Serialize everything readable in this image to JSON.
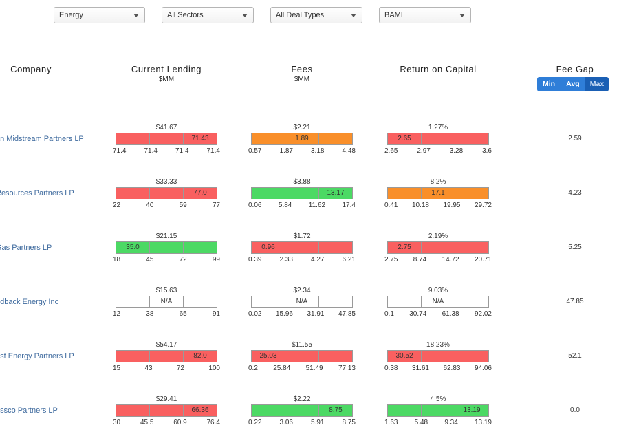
{
  "filters": [
    {
      "name": "filter-sector-group",
      "value": "Energy"
    },
    {
      "name": "filter-sectors",
      "value": "All Sectors"
    },
    {
      "name": "filter-deal-types",
      "value": "All Deal Types"
    },
    {
      "name": "filter-bank",
      "value": "BAML"
    }
  ],
  "headers": {
    "company": "Company",
    "lending": "Current Lending",
    "lending_unit": "$MM",
    "fees": "Fees",
    "fees_unit": "$MM",
    "roc": "Return on Capital",
    "fee_gap": "Fee Gap"
  },
  "toggle": {
    "min": "Min",
    "avg": "Avg",
    "max": "Max",
    "active": "max"
  },
  "colors": {
    "red": "#f96060",
    "orange": "#f98f2a",
    "green": "#4cd964",
    "na": "#ffffff",
    "link": "#3e6a9e",
    "toggle": "#2f7ed8"
  },
  "rows": [
    {
      "company": "an Midstream Partners LP",
      "lending": {
        "top": "$41.67",
        "value": "71.43",
        "seg": 2,
        "color": "red",
        "ticks": [
          "71.4",
          "71.4",
          "71.4",
          "71.4"
        ]
      },
      "fees": {
        "top": "$2.21",
        "value": "1.89",
        "seg": 1,
        "color": "orange",
        "ticks": [
          "0.57",
          "1.87",
          "3.18",
          "4.48"
        ]
      },
      "roc": {
        "top": "1.27%",
        "value": "2.65",
        "seg": 0,
        "color": "red",
        "ticks": [
          "2.65",
          "2.97",
          "3.28",
          "3.6"
        ]
      },
      "fee_gap": "2.59"
    },
    {
      "company": "Resources Partners LP",
      "lending": {
        "top": "$33.33",
        "value": "77.0",
        "seg": 2,
        "color": "red",
        "ticks": [
          "22",
          "40",
          "59",
          "77"
        ]
      },
      "fees": {
        "top": "$3.88",
        "value": "13.17",
        "seg": 2,
        "color": "green",
        "ticks": [
          "0.06",
          "5.84",
          "11.62",
          "17.4"
        ]
      },
      "roc": {
        "top": "8.2%",
        "value": "17.1",
        "seg": 1,
        "color": "orange",
        "ticks": [
          "0.41",
          "10.18",
          "19.95",
          "29.72"
        ]
      },
      "fee_gap": "4.23"
    },
    {
      "company": "Gas Partners LP",
      "lending": {
        "top": "$21.15",
        "value": "35.0",
        "seg": 0,
        "color": "green",
        "ticks": [
          "18",
          "45",
          "72",
          "99"
        ]
      },
      "fees": {
        "top": "$1.72",
        "value": "0.96",
        "seg": 0,
        "color": "red",
        "ticks": [
          "0.39",
          "2.33",
          "4.27",
          "6.21"
        ]
      },
      "roc": {
        "top": "2.19%",
        "value": "2.75",
        "seg": 0,
        "color": "red",
        "ticks": [
          "2.75",
          "8.74",
          "14.72",
          "20.71"
        ]
      },
      "fee_gap": "5.25"
    },
    {
      "company": "ndback Energy Inc",
      "lending": {
        "top": "$15.63",
        "value": "N/A",
        "seg": 1,
        "color": "na",
        "ticks": [
          "12",
          "38",
          "65",
          "91"
        ]
      },
      "fees": {
        "top": "$2.34",
        "value": "N/A",
        "seg": 1,
        "color": "na",
        "ticks": [
          "0.02",
          "15.96",
          "31.91",
          "47.85"
        ]
      },
      "roc": {
        "top": "9.03%",
        "value": "N/A",
        "seg": 1,
        "color": "na",
        "ticks": [
          "0.1",
          "30.74",
          "61.38",
          "92.02"
        ]
      },
      "fee_gap": "47.85"
    },
    {
      "company": "est Energy Partners LP",
      "lending": {
        "top": "$54.17",
        "value": "82.0",
        "seg": 2,
        "color": "red",
        "ticks": [
          "15",
          "43",
          "72",
          "100"
        ]
      },
      "fees": {
        "top": "$11.55",
        "value": "25.03",
        "seg": 0,
        "color": "red",
        "ticks": [
          "0.2",
          "25.84",
          "51.49",
          "77.13"
        ]
      },
      "roc": {
        "top": "18.23%",
        "value": "30.52",
        "seg": 0,
        "color": "red",
        "ticks": [
          "0.38",
          "31.61",
          "62.83",
          "94.06"
        ]
      },
      "fee_gap": "52.1"
    },
    {
      "company": "essco Partners LP",
      "lending": {
        "top": "$29.41",
        "value": "66.36",
        "seg": 2,
        "color": "red",
        "ticks": [
          "30",
          "45.5",
          "60.9",
          "76.4"
        ]
      },
      "fees": {
        "top": "$2.22",
        "value": "8.75",
        "seg": 2,
        "color": "green",
        "ticks": [
          "0.22",
          "3.06",
          "5.91",
          "8.75"
        ]
      },
      "roc": {
        "top": "4.5%",
        "value": "13.19",
        "seg": 2,
        "color": "green",
        "ticks": [
          "1.63",
          "5.48",
          "9.34",
          "13.19"
        ]
      },
      "fee_gap": "0.0"
    }
  ]
}
